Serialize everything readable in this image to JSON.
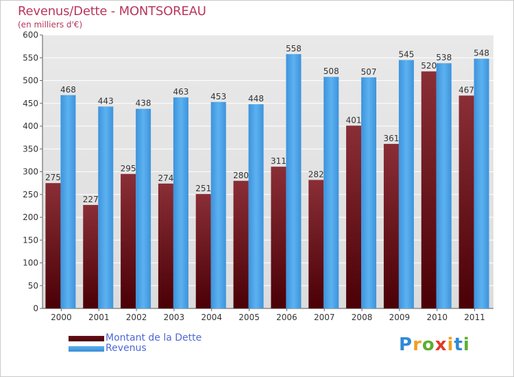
{
  "title": "Revenus/Dette - MONTSOREAU",
  "subtitle": "(en milliers d'€)",
  "logo": {
    "text": "Proxiti",
    "letters": [
      {
        "ch": "P",
        "color": "#2e8ad6"
      },
      {
        "ch": "r",
        "color": "#f0a020"
      },
      {
        "ch": "o",
        "color": "#5bb030"
      },
      {
        "ch": "x",
        "color": "#e03a2a"
      },
      {
        "ch": "i",
        "color": "#f0a020"
      },
      {
        "ch": "t",
        "color": "#2e8ad6"
      },
      {
        "ch": "i",
        "color": "#5bb030"
      }
    ]
  },
  "chart_data": {
    "type": "bar",
    "title": "Revenus/Dette - MONTSOREAU",
    "subtitle": "(en milliers d'€)",
    "categories": [
      "2000",
      "2001",
      "2002",
      "2003",
      "2004",
      "2005",
      "2006",
      "2007",
      "2008",
      "2009",
      "2010",
      "2011"
    ],
    "series": [
      {
        "name": "Montant de la Dette",
        "color": "#7a1f2a",
        "values": [
          275,
          227,
          295,
          274,
          251,
          280,
          311,
          282,
          401,
          361,
          520,
          467
        ]
      },
      {
        "name": "Revenus",
        "color": "#4da3e6",
        "values": [
          468,
          443,
          438,
          463,
          453,
          448,
          558,
          508,
          507,
          545,
          538,
          548
        ]
      }
    ],
    "ylim": [
      0,
      600
    ],
    "yticks": [
      0,
      50,
      100,
      150,
      200,
      250,
      300,
      350,
      400,
      450,
      500,
      550,
      600
    ],
    "grid": true,
    "legend": "bottom-left"
  }
}
